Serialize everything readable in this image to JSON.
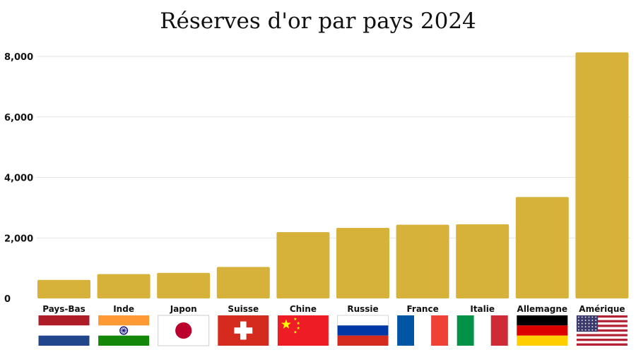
{
  "chart_data": {
    "type": "bar",
    "title": "Réserves d'or par pays 2024",
    "xlabel": "",
    "ylabel": "",
    "categories": [
      "Pays-Bas",
      "Inde",
      "Japon",
      "Suisse",
      "Chine",
      "Russie",
      "France",
      "Italie",
      "Allemagne",
      "Amérique"
    ],
    "values": [
      612,
      804,
      846,
      1040,
      2191,
      2333,
      2437,
      2452,
      3352,
      8133
    ],
    "ylim": [
      0,
      8200
    ],
    "yticks": [
      0,
      2000,
      4000,
      6000,
      8000
    ],
    "ytick_labels": [
      "0",
      "2,000",
      "4,000",
      "6,000",
      "8,000"
    ],
    "grid": true,
    "bar_color": "#D6B23A",
    "grid_color": "#E3E3E3",
    "flag_icons": [
      "flag-netherlands-icon",
      "flag-india-icon",
      "flag-japan-icon",
      "flag-switzerland-icon",
      "flag-china-icon",
      "flag-russia-icon",
      "flag-france-icon",
      "flag-italy-icon",
      "flag-germany-icon",
      "flag-usa-icon"
    ]
  }
}
